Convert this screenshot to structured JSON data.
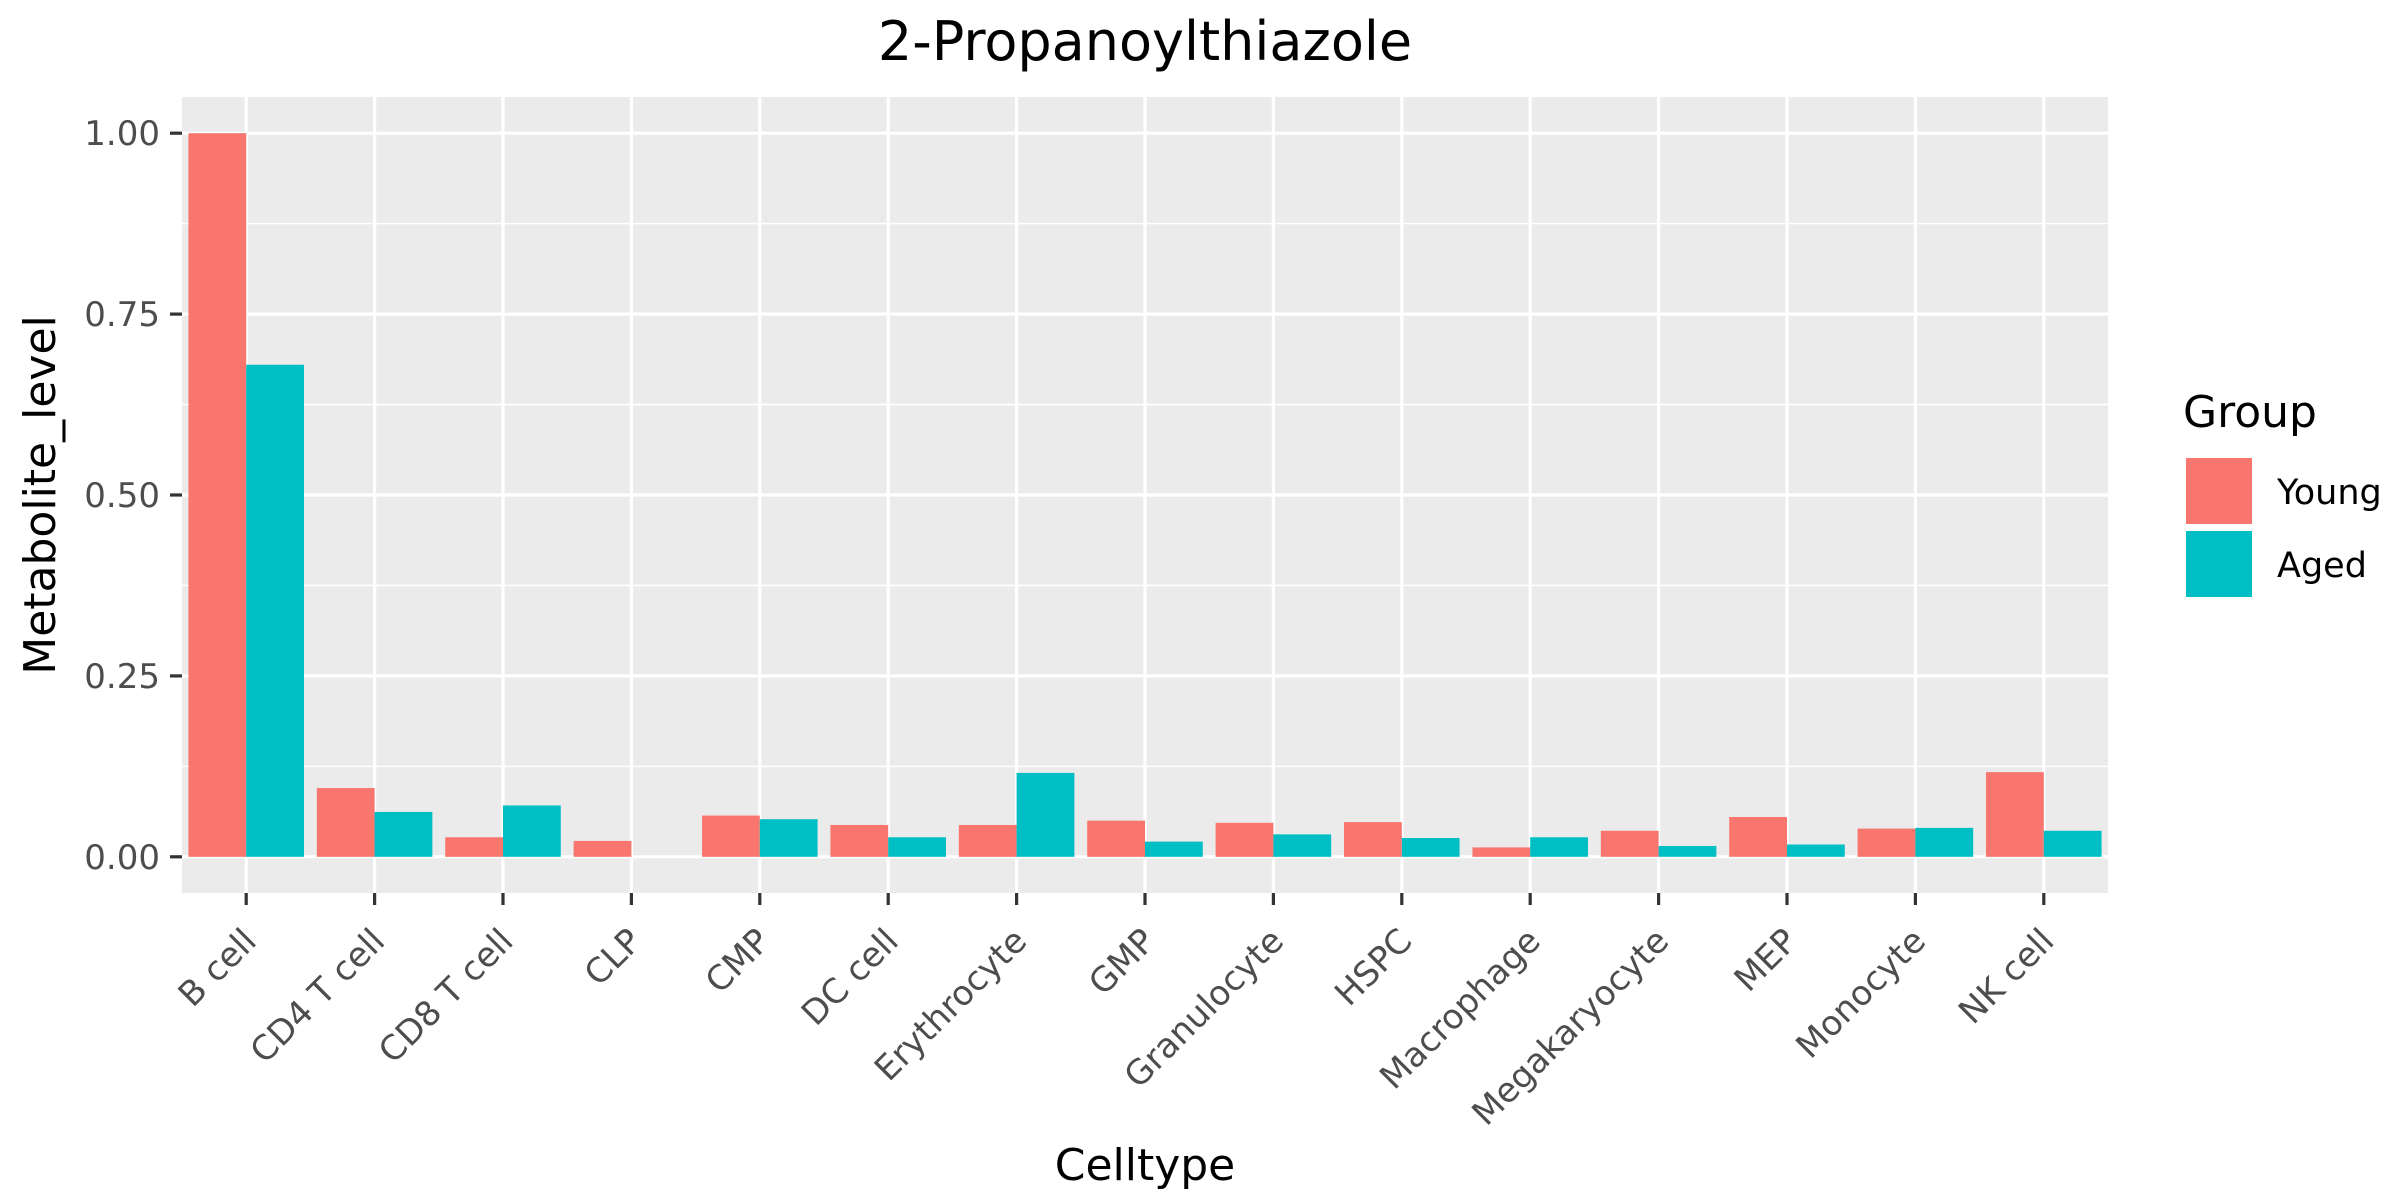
{
  "chart_data": {
    "type": "bar",
    "title": "2-Propanoylthiazole",
    "xlabel": "Celltype",
    "ylabel": "Metabolite_level",
    "categories": [
      "B cell",
      "CD4 T cell",
      "CD8 T cell",
      "CLP",
      "CMP",
      "DC cell",
      "Erythrocyte",
      "GMP",
      "Granulocyte",
      "HSPC",
      "Macrophage",
      "Megakaryocyte",
      "MEP",
      "Monocyte",
      "NK cell"
    ],
    "series": [
      {
        "name": "Young",
        "color": "#F8766D",
        "values": [
          1.0,
          0.095,
          0.027,
          0.022,
          0.057,
          0.044,
          0.044,
          0.05,
          0.047,
          0.048,
          0.013,
          0.036,
          0.055,
          0.039,
          0.117
        ]
      },
      {
        "name": "Aged",
        "color": "#00BFC4",
        "values": [
          0.68,
          0.062,
          0.071,
          0.0,
          0.052,
          0.027,
          0.116,
          0.021,
          0.031,
          0.026,
          0.027,
          0.015,
          0.017,
          0.04,
          0.036
        ]
      }
    ],
    "ylim": [
      -0.05,
      1.05
    ],
    "yticks": [
      0.0,
      0.25,
      0.5,
      0.75,
      1.0
    ],
    "ytick_labels": [
      "0.00",
      "0.25",
      "0.50",
      "0.75",
      "1.00"
    ],
    "grid": true,
    "legend": {
      "title": "Group",
      "position": "right"
    }
  }
}
